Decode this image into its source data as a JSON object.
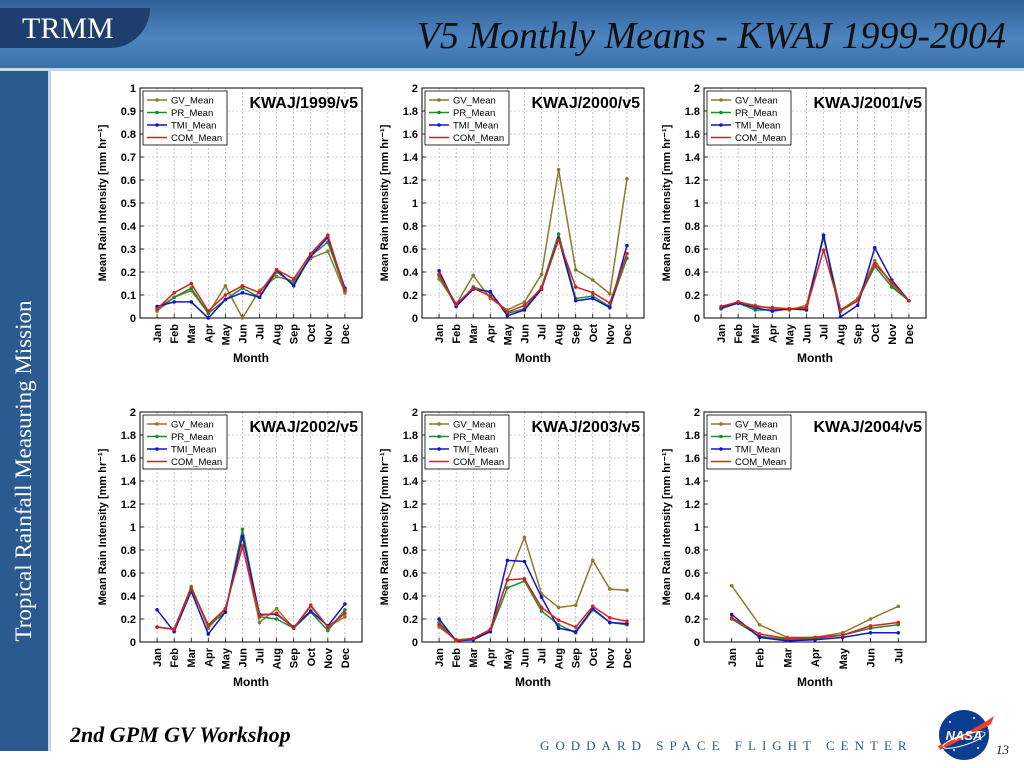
{
  "header": {
    "brand": "TRMM",
    "title": "V5 Monthly Means - KWAJ 1999-2004"
  },
  "sidebar": {
    "text": "Tropical Rainfall Measuring Mission"
  },
  "footer": {
    "workshop": "2nd GPM GV Workshop",
    "center": "GODDARD SPACE FLIGHT CENTER",
    "page": "13"
  },
  "logo": {
    "text": "NASA"
  },
  "colors": {
    "GV_Mean": "#8b7a2b",
    "PR_Mean": "#1e8c2e",
    "TMI_Mean": "#1414c8",
    "COM_Mean": "#dc1e1e",
    "header": "#3f78b6",
    "sidebar": "#2b5a91"
  },
  "chart_data": [
    {
      "type": "line",
      "title": "KWAJ/1999/v5",
      "xlabel": "Month",
      "ylabel": "Mean Rain Intensity [mm hr⁻¹]",
      "categories": [
        "Jan",
        "Feb",
        "Mar",
        "Apr",
        "May",
        "Jun",
        "Jul",
        "Aug",
        "Sep",
        "Oct",
        "Nov",
        "Dec"
      ],
      "ylim": [
        0,
        1
      ],
      "yticks": [
        0,
        0.1,
        0.2,
        0.3,
        0.4,
        0.5,
        0.6,
        0.7,
        0.8,
        0.9,
        1
      ],
      "grid": "on",
      "legend": "top-left",
      "series": [
        {
          "name": "GV_Mean",
          "values": [
            0.03,
            0.09,
            0.12,
            0.02,
            0.14,
            0.0,
            0.12,
            0.18,
            0.16,
            0.26,
            0.29,
            0.11
          ]
        },
        {
          "name": "PR_Mean",
          "values": [
            0.04,
            0.09,
            0.13,
            0.02,
            0.08,
            0.13,
            0.09,
            0.2,
            0.15,
            0.27,
            0.33,
            0.12
          ]
        },
        {
          "name": "TMI_Mean",
          "values": [
            0.05,
            0.07,
            0.07,
            0.0,
            0.08,
            0.11,
            0.09,
            0.21,
            0.14,
            0.27,
            0.35,
            0.13
          ]
        },
        {
          "name": "COM_Mean",
          "values": [
            0.04,
            0.11,
            0.15,
            0.03,
            0.1,
            0.14,
            0.11,
            0.21,
            0.17,
            0.28,
            0.36,
            0.12
          ]
        }
      ]
    },
    {
      "type": "line",
      "title": "KWAJ/2000/v5",
      "xlabel": "Month",
      "ylabel": "Mean Rain Intensity [mm hr⁻¹]",
      "categories": [
        "Jan",
        "Feb",
        "Mar",
        "Apr",
        "May",
        "Jun",
        "Jul",
        "Aug",
        "Sep",
        "Oct",
        "Nov",
        "Dec"
      ],
      "ylim": [
        0,
        2
      ],
      "yticks": [
        0,
        0.2,
        0.4,
        0.6,
        0.8,
        1,
        1.2,
        1.4,
        1.6,
        1.8,
        2
      ],
      "grid": "on",
      "legend": "top-left",
      "series": [
        {
          "name": "GV_Mean",
          "values": [
            0.34,
            0.12,
            0.37,
            0.17,
            0.07,
            0.14,
            0.38,
            1.29,
            0.42,
            0.33,
            0.21,
            1.21
          ]
        },
        {
          "name": "PR_Mean",
          "values": [
            0.37,
            0.1,
            0.27,
            0.22,
            0.04,
            0.08,
            0.27,
            0.73,
            0.17,
            0.19,
            0.1,
            0.52
          ]
        },
        {
          "name": "TMI_Mean",
          "values": [
            0.41,
            0.1,
            0.25,
            0.23,
            0.02,
            0.07,
            0.25,
            0.69,
            0.15,
            0.17,
            0.09,
            0.63
          ]
        },
        {
          "name": "COM_Mean",
          "values": [
            0.38,
            0.12,
            0.26,
            0.19,
            0.05,
            0.11,
            0.26,
            0.68,
            0.27,
            0.22,
            0.13,
            0.56
          ]
        }
      ]
    },
    {
      "type": "line",
      "title": "KWAJ/2001/v5",
      "xlabel": "Month",
      "ylabel": "Mean Rain Intensity [mm hr⁻¹]",
      "categories": [
        "Jan",
        "Feb",
        "Mar",
        "Apr",
        "May",
        "Jun",
        "Jul",
        "Aug",
        "Sep",
        "Oct",
        "Nov",
        "Dec"
      ],
      "ylim": [
        0,
        2
      ],
      "yticks": [
        0,
        0.2,
        0.4,
        0.6,
        0.8,
        1,
        1.2,
        1.4,
        1.6,
        1.8,
        2
      ],
      "grid": "on",
      "legend": "top-left",
      "series": [
        {
          "name": "GV_Mean",
          "values": [
            0.08,
            0.14,
            0.11,
            0.08,
            0.07,
            0.11,
            0.7,
            0.07,
            0.17,
            0.5,
            0.29,
            0.15
          ]
        },
        {
          "name": "PR_Mean",
          "values": [
            0.08,
            0.13,
            0.07,
            0.07,
            0.08,
            0.08,
            0.72,
            0.06,
            0.15,
            0.45,
            0.27,
            0.15
          ]
        },
        {
          "name": "TMI_Mean",
          "values": [
            0.09,
            0.13,
            0.09,
            0.06,
            0.08,
            0.07,
            0.72,
            0.01,
            0.11,
            0.61,
            0.33,
            0.15
          ]
        },
        {
          "name": "COM_Mean",
          "values": [
            0.1,
            0.14,
            0.1,
            0.09,
            0.08,
            0.09,
            0.59,
            0.07,
            0.15,
            0.47,
            0.31,
            0.15
          ]
        }
      ]
    },
    {
      "type": "line",
      "title": "KWAJ/2002/v5",
      "xlabel": "Month",
      "ylabel": "Mean Rain Intensity [mm hr⁻¹]",
      "categories": [
        "Jan",
        "Feb",
        "Mar",
        "Apr",
        "May",
        "Jun",
        "Jul",
        "Aug",
        "Sep",
        "Oct",
        "Nov",
        "Dec"
      ],
      "ylim": [
        0,
        2
      ],
      "yticks": [
        0,
        0.2,
        0.4,
        0.6,
        0.8,
        1,
        1.2,
        1.4,
        1.6,
        1.8,
        2
      ],
      "grid": "on",
      "legend": "top-left",
      "series": [
        {
          "name": "GV_Mean",
          "values": [
            0.13,
            0.11,
            0.48,
            0.12,
            0.29,
            0.84,
            0.17,
            0.29,
            0.12,
            0.31,
            0.13,
            0.22
          ]
        },
        {
          "name": "PR_Mean",
          "values": [
            0.13,
            0.11,
            0.48,
            0.14,
            0.26,
            0.98,
            0.22,
            0.2,
            0.12,
            0.26,
            0.1,
            0.28
          ]
        },
        {
          "name": "TMI_Mean",
          "values": [
            0.28,
            0.09,
            0.44,
            0.07,
            0.26,
            0.92,
            0.24,
            0.24,
            0.13,
            0.27,
            0.14,
            0.33
          ]
        },
        {
          "name": "COM_Mean",
          "values": [
            0.13,
            0.11,
            0.46,
            0.15,
            0.29,
            0.83,
            0.23,
            0.25,
            0.12,
            0.32,
            0.13,
            0.25
          ]
        }
      ]
    },
    {
      "type": "line",
      "title": "KWAJ/2003/v5",
      "xlabel": "Month",
      "ylabel": "Mean Rain Intensity [mm hr⁻¹]",
      "categories": [
        "Jan",
        "Feb",
        "Mar",
        "Apr",
        "May",
        "Jun",
        "Jul",
        "Aug",
        "Sep",
        "Oct",
        "Nov",
        "Dec"
      ],
      "ylim": [
        0,
        2
      ],
      "yticks": [
        0,
        0.2,
        0.4,
        0.6,
        0.8,
        1,
        1.2,
        1.4,
        1.6,
        1.8,
        2
      ],
      "grid": "on",
      "legend": "top-left",
      "series": [
        {
          "name": "GV_Mean",
          "values": [
            0.13,
            0.02,
            0.03,
            0.1,
            0.54,
            0.91,
            0.42,
            0.3,
            0.32,
            0.71,
            0.46,
            0.45
          ]
        },
        {
          "name": "PR_Mean",
          "values": [
            0.17,
            0.01,
            0.03,
            0.09,
            0.47,
            0.53,
            0.27,
            0.15,
            0.08,
            0.28,
            0.17,
            0.15
          ]
        },
        {
          "name": "TMI_Mean",
          "values": [
            0.2,
            0.01,
            0.02,
            0.09,
            0.71,
            0.7,
            0.39,
            0.12,
            0.09,
            0.29,
            0.17,
            0.16
          ]
        },
        {
          "name": "COM_Mean",
          "values": [
            0.15,
            0.01,
            0.03,
            0.11,
            0.54,
            0.55,
            0.3,
            0.19,
            0.13,
            0.31,
            0.21,
            0.18
          ]
        }
      ]
    },
    {
      "type": "line",
      "title": "KWAJ/2004/v5",
      "xlabel": "Month",
      "ylabel": "Mean Rain Intensity [mm hr⁻¹]",
      "categories": [
        "Jan",
        "Feb",
        "Mar",
        "Apr",
        "May",
        "Jun",
        "Jul"
      ],
      "ylim": [
        0,
        2
      ],
      "yticks": [
        0,
        0.2,
        0.4,
        0.6,
        0.8,
        1,
        1.2,
        1.4,
        1.6,
        1.8,
        2
      ],
      "grid": "off",
      "legend": "top-left",
      "series": [
        {
          "name": "GV_Mean",
          "values": [
            0.49,
            0.15,
            0.04,
            0.04,
            0.08,
            0.2,
            0.31
          ]
        },
        {
          "name": "PR_Mean",
          "values": [
            0.2,
            0.05,
            0.02,
            0.03,
            0.06,
            0.12,
            0.15
          ]
        },
        {
          "name": "TMI_Mean",
          "values": [
            0.24,
            0.04,
            0.01,
            0.02,
            0.04,
            0.08,
            0.08
          ]
        },
        {
          "name": "COM_Mean",
          "values": [
            0.21,
            0.07,
            0.03,
            0.04,
            0.06,
            0.14,
            0.17
          ]
        }
      ]
    }
  ]
}
